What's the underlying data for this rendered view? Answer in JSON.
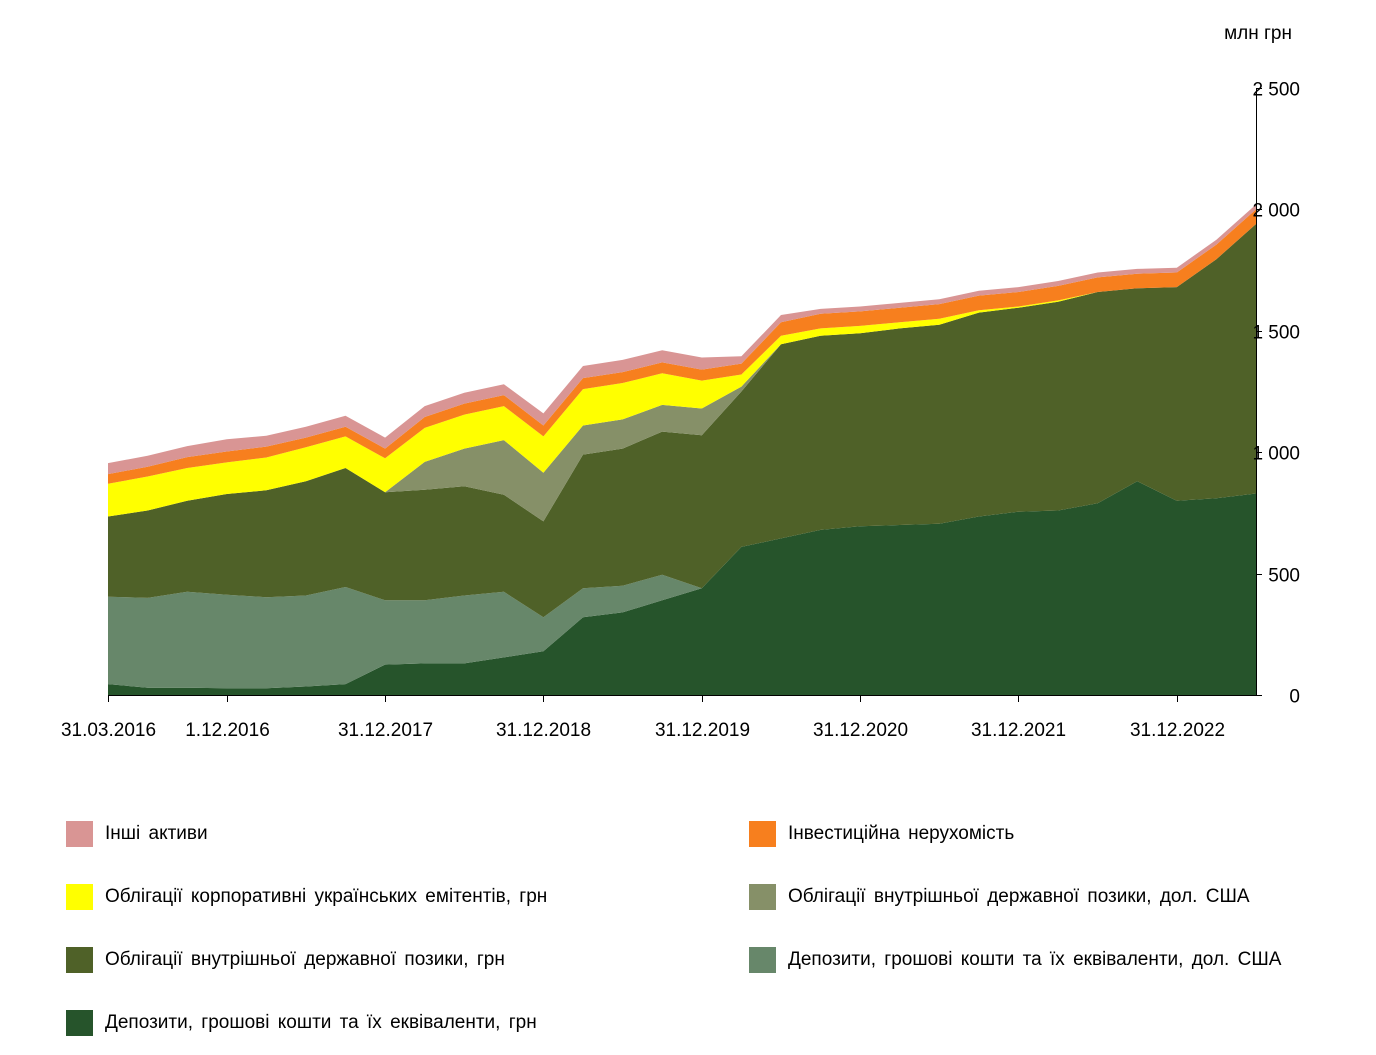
{
  "chart_data": {
    "type": "area",
    "stacked": true,
    "unit_label": "млн грн",
    "y_axis_position": "right",
    "ylim": [
      0,
      2500
    ],
    "y_ticks": [
      {
        "value": 0,
        "label": "0"
      },
      {
        "value": 500,
        "label": "500"
      },
      {
        "value": 1000,
        "label": "1 000"
      },
      {
        "value": 1500,
        "label": "1 500"
      },
      {
        "value": 2000,
        "label": "2 000"
      },
      {
        "value": 2500,
        "label": "2 500"
      }
    ],
    "x_ticks": [
      {
        "index": 0,
        "label": "31.03.2016"
      },
      {
        "index": 3,
        "label": "1.12.2016"
      },
      {
        "index": 7,
        "label": "31.12.2017"
      },
      {
        "index": 11,
        "label": "31.12.2018"
      },
      {
        "index": 15,
        "label": "31.12.2019"
      },
      {
        "index": 19,
        "label": "31.12.2020"
      },
      {
        "index": 23,
        "label": "31.12.2021"
      },
      {
        "index": 27,
        "label": "31.12.2022"
      }
    ],
    "x": [
      "31.03.2016",
      "30.06.2016",
      "30.09.2016",
      "1.12.2016",
      "31.03.2017",
      "30.06.2017",
      "30.09.2017",
      "31.12.2017",
      "31.03.2018",
      "30.06.2018",
      "30.09.2018",
      "31.12.2018",
      "31.03.2019",
      "30.06.2019",
      "30.09.2019",
      "31.12.2019",
      "31.03.2020",
      "30.06.2020",
      "30.09.2020",
      "31.12.2020",
      "31.03.2021",
      "30.06.2021",
      "30.09.2021",
      "31.12.2021",
      "31.03.2022",
      "30.06.2022",
      "30.09.2022",
      "31.12.2022",
      "31.03.2023",
      "30.06.2023"
    ],
    "series": [
      {
        "name": "Депозити, грошові кошти та їх еквіваленти, грн",
        "color": "#26542b",
        "values": [
          45,
          30,
          30,
          28,
          28,
          35,
          45,
          125,
          130,
          130,
          155,
          180,
          320,
          340,
          390,
          440,
          610,
          645,
          680,
          695,
          700,
          705,
          735,
          755,
          760,
          790,
          880,
          800,
          810,
          830
        ]
      },
      {
        "name": "Депозити, грошові кошти та їх еквіваленти, дол. США",
        "color": "#67876a",
        "values": [
          360,
          370,
          395,
          385,
          375,
          375,
          400,
          265,
          260,
          280,
          270,
          140,
          120,
          110,
          105,
          0,
          0,
          0,
          0,
          0,
          0,
          0,
          0,
          0,
          0,
          0,
          0,
          0,
          0,
          0
        ]
      },
      {
        "name": "Облігації внутрішньої державної позики, грн",
        "color": "#4f6128",
        "values": [
          330,
          360,
          375,
          415,
          440,
          470,
          490,
          445,
          455,
          450,
          400,
          395,
          550,
          565,
          590,
          630,
          640,
          800,
          800,
          795,
          810,
          820,
          840,
          840,
          860,
          870,
          795,
          880,
          985,
          1110
        ]
      },
      {
        "name": "Облігації внутрішньої державної позики, дол. США",
        "color": "#869068",
        "values": [
          0,
          0,
          0,
          0,
          0,
          0,
          0,
          0,
          115,
          155,
          225,
          200,
          120,
          120,
          110,
          110,
          20,
          0,
          0,
          0,
          0,
          0,
          0,
          0,
          0,
          0,
          0,
          0,
          0,
          0
        ]
      },
      {
        "name": "Облігації корпоративні українських емітентів, грн",
        "color": "#ffff00",
        "values": [
          135,
          140,
          135,
          130,
          135,
          140,
          130,
          140,
          140,
          140,
          140,
          150,
          150,
          150,
          130,
          115,
          50,
          35,
          30,
          30,
          25,
          25,
          10,
          5,
          5,
          0,
          0,
          0,
          0,
          0
        ]
      },
      {
        "name": "Інвестиційна нерухомість",
        "color": "#f77f1e",
        "values": [
          40,
          40,
          45,
          45,
          45,
          40,
          40,
          40,
          45,
          45,
          45,
          45,
          45,
          45,
          45,
          45,
          45,
          55,
          60,
          60,
          60,
          60,
          60,
          60,
          60,
          60,
          60,
          60,
          60,
          60
        ]
      },
      {
        "name": "Інші активи",
        "color": "#d99594",
        "values": [
          45,
          45,
          45,
          50,
          45,
          45,
          45,
          45,
          45,
          45,
          45,
          50,
          50,
          50,
          50,
          50,
          30,
          30,
          20,
          20,
          20,
          20,
          20,
          20,
          20,
          20,
          20,
          20,
          20,
          20
        ]
      }
    ],
    "legend_order": [
      "Інші активи",
      "Інвестиційна нерухомість",
      "Облігації корпоративні українських емітентів, грн",
      "Облігації внутрішньої державної позики, дол. США",
      "Облігації внутрішньої державної позики, грн",
      "Депозити, грошові кошти та їх еквіваленти, дол. США",
      "Депозити, грошові кошти та їх еквіваленти, грн"
    ],
    "legend_placement": "bottom",
    "grid": false
  }
}
